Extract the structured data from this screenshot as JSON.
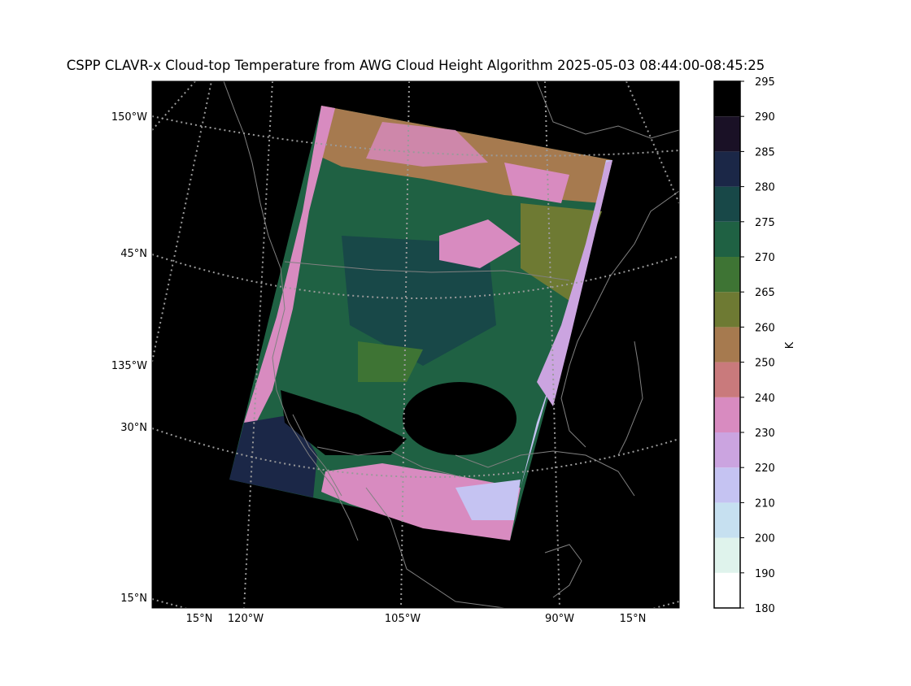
{
  "title": "CSPP CLAVR-x Cloud-top Temperature from AWG Cloud Height Algorithm 2025-05-03 08:44:00-08:45:25",
  "left_labels": [
    "150°W",
    "45°N",
    "135°W",
    "30°N",
    "15°N"
  ],
  "bottom_labels": [
    "15°N",
    "120°W",
    "105°W",
    "90°W",
    "15°N"
  ],
  "colorbar": {
    "label": "K",
    "ticks": [
      180,
      190,
      200,
      210,
      220,
      230,
      240,
      250,
      260,
      265,
      270,
      275,
      280,
      285,
      290,
      295
    ],
    "colors": [
      "#ffffff",
      "#dff3ec",
      "#c6e0f0",
      "#c5c3f2",
      "#cba4e0",
      "#d88bc0",
      "#c97a7c",
      "#a67a4f",
      "#6e7a33",
      "#3e7434",
      "#1f6143",
      "#184848",
      "#1b2747",
      "#1a1126",
      "#000000"
    ]
  }
}
